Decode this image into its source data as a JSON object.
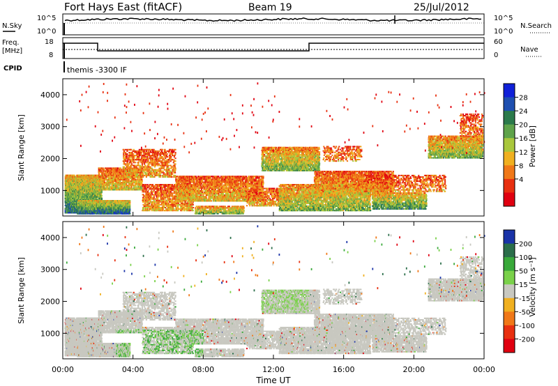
{
  "header": {
    "station": "Fort Hays East (fitACF)",
    "beam": "Beam 19",
    "date": "25/Jul/2012"
  },
  "noise_panel": {
    "left_label": "N.Sky",
    "left_ticks": [
      "10^5",
      "10^0"
    ],
    "right_label": "N.Search",
    "right_ticks": [
      "10^5",
      "10^0"
    ]
  },
  "freq_panel": {
    "left_label_1": "Freq.",
    "left_label_2": "[MHz]",
    "left_ticks": [
      "18",
      "8"
    ],
    "right_label": "Nave",
    "right_ticks": [
      "60",
      "0"
    ]
  },
  "cpid": {
    "label": "CPID",
    "value": "themis -3300 IF"
  },
  "chart_data": [
    {
      "type": "heatmap",
      "name_key": "power",
      "ylabel": "Slant Range [km]",
      "yticks": [
        "1000",
        "2000",
        "3000",
        "4000"
      ],
      "ylim": [
        200,
        4500
      ],
      "xlim_hours": [
        0,
        24
      ],
      "colorbar_label": "Power [dB]",
      "colorbar_ticks": [
        "4",
        "8",
        "12",
        "16",
        "20",
        "24",
        "28"
      ],
      "colorbar_colors": [
        "#1020d8",
        "#1e4fb0",
        "#2b7a4b",
        "#5fa34a",
        "#a9c73c",
        "#f0b020",
        "#f07818",
        "#e83010",
        "#e00010"
      ]
    },
    {
      "type": "heatmap",
      "name_key": "velocity",
      "ylabel": "Slant Range [km]",
      "yticks": [
        "1000",
        "2000",
        "3000",
        "4000"
      ],
      "ylim": [
        200,
        4500
      ],
      "xlim_hours": [
        0,
        24
      ],
      "colorbar_label": "Velocity [m s⁻¹]",
      "colorbar_ticks": [
        "200",
        "100",
        "50",
        "15",
        "-15",
        "-50",
        "-100",
        "-200"
      ],
      "colorbar_colors": [
        "#1a33a8",
        "#2b6e4a",
        "#39a93a",
        "#7ad14a",
        "#c8c8c0",
        "#f0b020",
        "#f07818",
        "#e83010",
        "#e00010"
      ]
    }
  ],
  "xaxis": {
    "ticks": [
      "00:00",
      "04:00",
      "08:00",
      "12:00",
      "16:00",
      "20:00",
      "00:00"
    ],
    "label": "Time UT"
  }
}
